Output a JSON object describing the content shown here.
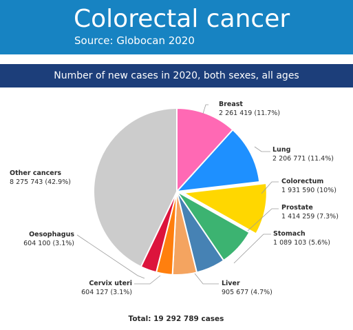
{
  "header": {
    "title": "Colorectal cancer",
    "subtitle": "Source: Globocan 2020",
    "background": "#1783c2"
  },
  "banner": {
    "text": "Number of new cases in 2020, both sexes, all ages",
    "background": "#1c3e7a"
  },
  "chart_data": {
    "type": "pie",
    "title": "Number of new cases in 2020, both sexes, all ages",
    "total_label": "Total: 19 292 789 cases",
    "start": "12 o'clock, clockwise",
    "highlighted": "Colorectum",
    "slices": [
      {
        "name": "Breast",
        "value_text": "2 261 419 (11.7%)",
        "value": 2261419,
        "percent": 11.7,
        "color": "#ff69b4"
      },
      {
        "name": "Lung",
        "value_text": "2 206 771 (11.4%)",
        "value": 2206771,
        "percent": 11.4,
        "color": "#1e90ff"
      },
      {
        "name": "Colorectum",
        "value_text": "1 931 590 (10%)",
        "value": 1931590,
        "percent": 10.0,
        "color": "#ffd700"
      },
      {
        "name": "Prostate",
        "value_text": "1 414 259 (7.3%)",
        "value": 1414259,
        "percent": 7.3,
        "color": "#3cb371"
      },
      {
        "name": "Stomach",
        "value_text": "1 089 103 (5.6%)",
        "value": 1089103,
        "percent": 5.6,
        "color": "#4682b4"
      },
      {
        "name": "Liver",
        "value_text": "905 677 (4.7%)",
        "value": 905677,
        "percent": 4.7,
        "color": "#f4a460"
      },
      {
        "name": "Cervix uteri",
        "value_text": "604 127 (3.1%)",
        "value": 604127,
        "percent": 3.1,
        "color": "#ff7f0e"
      },
      {
        "name": "Oesophagus",
        "value_text": "604 100 (3.1%)",
        "value": 604100,
        "percent": 3.1,
        "color": "#dc143c"
      },
      {
        "name": "Other cancers",
        "value_text": "8 275 743 (42.9%)",
        "value": 8275743,
        "percent": 42.9,
        "color": "#cccccc"
      }
    ]
  }
}
